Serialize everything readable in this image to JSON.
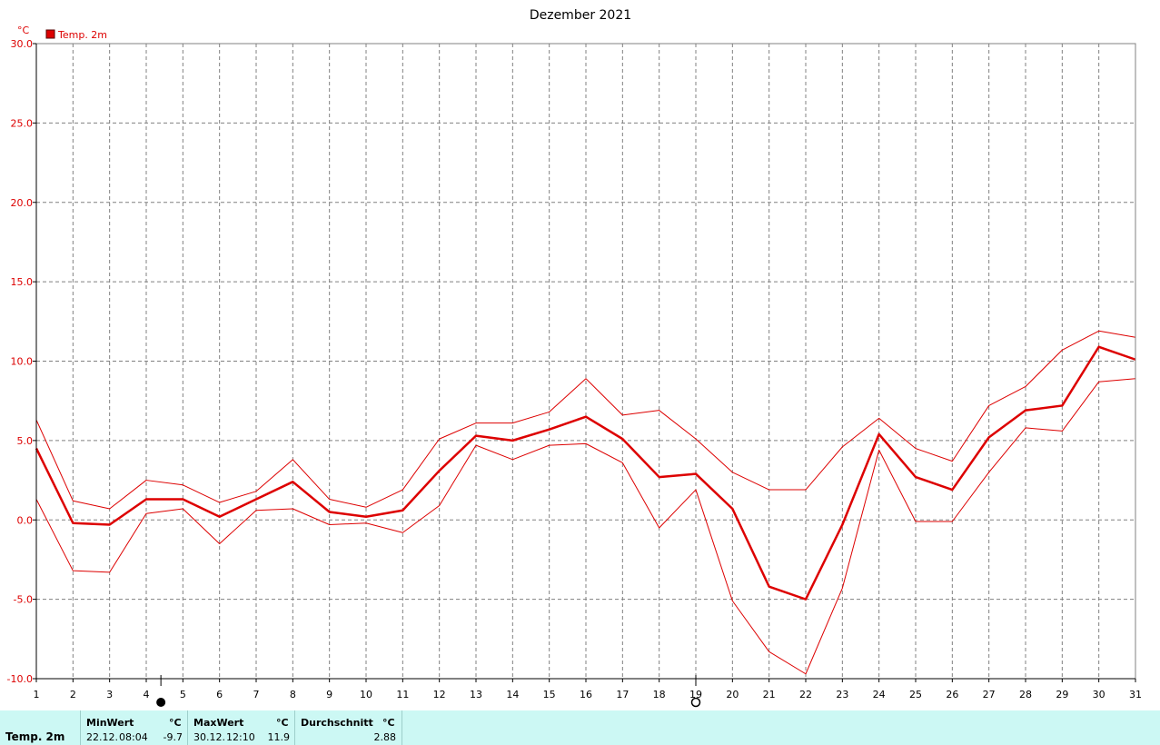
{
  "chart_data": {
    "type": "line",
    "title": "Dezember 2021",
    "ylabel": "°C",
    "ylim": [
      -10,
      30
    ],
    "yticks": [
      "30.0",
      "25.0",
      "20.0",
      "15.0",
      "10.0",
      "5.0",
      "0.0",
      "-5.0",
      "-10.0"
    ],
    "x": [
      1,
      2,
      3,
      4,
      5,
      6,
      7,
      8,
      9,
      10,
      11,
      12,
      13,
      14,
      15,
      16,
      17,
      18,
      19,
      20,
      21,
      22,
      23,
      24,
      25,
      26,
      27,
      28,
      29,
      30,
      31
    ],
    "xticks": [
      "1",
      "2",
      "3",
      "4",
      "5",
      "6",
      "7",
      "8",
      "9",
      "10",
      "11",
      "12",
      "13",
      "14",
      "15",
      "16",
      "17",
      "18",
      "19",
      "20",
      "21",
      "22",
      "23",
      "24",
      "25",
      "26",
      "27",
      "28",
      "29",
      "30",
      "31"
    ],
    "xlim": [
      1,
      31
    ],
    "grid": true,
    "legend_position": "top-left",
    "legend": [
      "Temp. 2m"
    ],
    "series_color": "#dd0000",
    "series": [
      {
        "name": "Temp. 2m",
        "role": "mean",
        "values": [
          4.5,
          -0.2,
          -0.3,
          1.3,
          1.3,
          0.2,
          1.3,
          2.4,
          0.5,
          0.2,
          0.6,
          3.1,
          5.3,
          5.0,
          5.7,
          6.5,
          5.1,
          2.7,
          2.9,
          0.7,
          -4.2,
          -5.0,
          -0.3,
          5.4,
          2.7,
          1.9,
          5.2,
          6.9,
          7.2,
          10.9,
          10.1
        ]
      },
      {
        "role": "max",
        "values": [
          6.3,
          1.2,
          0.7,
          2.5,
          2.2,
          1.1,
          1.8,
          3.8,
          1.3,
          0.8,
          1.9,
          5.1,
          6.1,
          6.1,
          6.8,
          8.9,
          6.6,
          6.9,
          5.1,
          3.0,
          1.9,
          1.9,
          4.6,
          6.4,
          4.5,
          3.7,
          7.2,
          8.4,
          10.7,
          11.9,
          11.5
        ]
      },
      {
        "role": "min",
        "values": [
          1.3,
          -3.2,
          -3.3,
          0.4,
          0.7,
          -1.5,
          0.6,
          0.7,
          -0.3,
          -0.2,
          -0.8,
          0.9,
          4.7,
          3.8,
          4.7,
          4.8,
          3.6,
          -0.5,
          1.9,
          -5.1,
          -8.3,
          -9.7,
          -4.3,
          4.4,
          -0.1,
          -0.1,
          3.0,
          5.8,
          5.6,
          8.7,
          8.9
        ]
      }
    ],
    "moon_markers": [
      {
        "day": 4.4,
        "phase": "new"
      },
      {
        "day": 19.0,
        "phase": "full"
      }
    ]
  },
  "stats": {
    "row_label": "Temp. 2m",
    "min_header": "MinWert",
    "min_unit": "°C",
    "min_date": "22.12.",
    "min_time": "08:04",
    "min_value": "-9.7",
    "max_header": "MaxWert",
    "max_unit": "°C",
    "max_date": "30.12.",
    "max_time": "12:10",
    "max_value": "11.9",
    "avg_header": "Durchschnitt",
    "avg_unit": "°C",
    "avg_value": "2.88"
  }
}
